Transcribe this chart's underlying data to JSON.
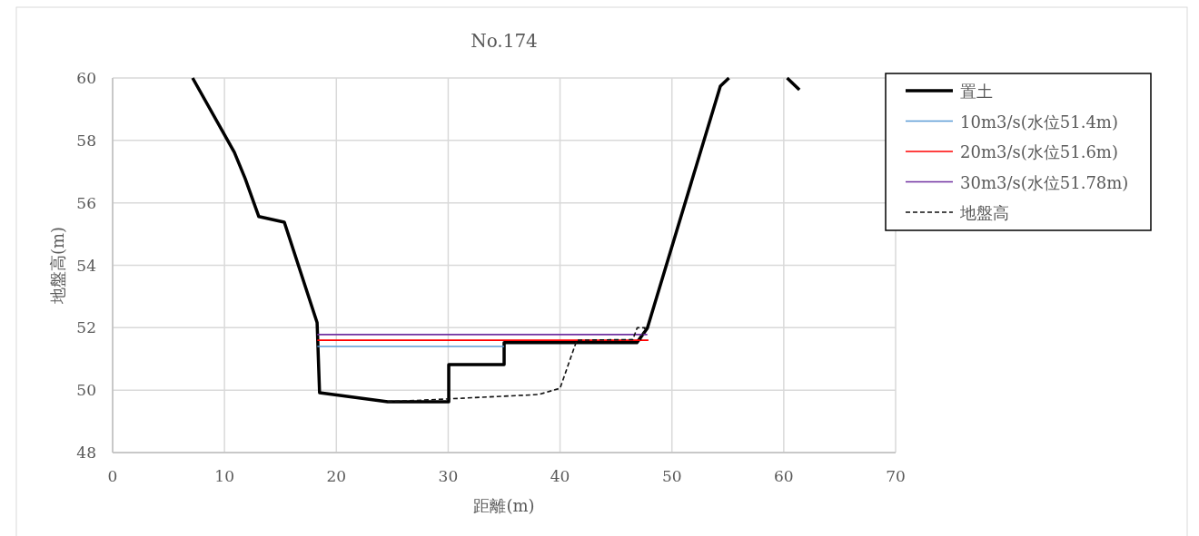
{
  "chart_data": {
    "type": "line",
    "title": "No.174",
    "xlabel": "距離(m)",
    "ylabel": "地盤高(m)",
    "xlim": [
      0,
      70
    ],
    "ylim": [
      48,
      60
    ],
    "xticks": [
      0,
      10,
      20,
      30,
      40,
      50,
      60,
      70
    ],
    "yticks": [
      48,
      50,
      52,
      54,
      56,
      58,
      60
    ],
    "grid": true,
    "legend": "top right",
    "series": [
      {
        "name": "置土",
        "color": "#000000",
        "line_style": "solid",
        "x": [
          7.15,
          10.88,
          11.85,
          13.07,
          15.35,
          18.28,
          18.5,
          24.6,
          30.05,
          30.05,
          35.0,
          35.0,
          46.86,
          47.8,
          54.33,
          55.1
        ],
        "values": [
          60,
          57.62,
          56.78,
          55.56,
          55.38,
          52.16,
          49.92,
          49.63,
          49.63,
          50.82,
          50.82,
          51.52,
          51.52,
          51.98,
          59.74,
          60
        ]
      },
      {
        "name": "10m3/s(水位51.4m)",
        "color": "#5b9bd5",
        "line_style": "solid",
        "x": [
          18.3,
          35.0
        ],
        "values": [
          51.4,
          51.4
        ]
      },
      {
        "name": "20m3/s(水位51.6m)",
        "color": "#ff0000",
        "line_style": "solid",
        "x": [
          18.3,
          47.9
        ],
        "values": [
          51.6,
          51.6
        ]
      },
      {
        "name": "30m3/s(水位51.78m)",
        "color": "#7030a0",
        "line_style": "solid",
        "x": [
          18.3,
          47.8
        ],
        "values": [
          51.78,
          51.78
        ]
      },
      {
        "color": "#000000",
        "line_style": "solid",
        "x": [
          60.3,
          61.4
        ],
        "values": [
          60,
          59.62
        ]
      },
      {
        "name": "地盤高",
        "color": "#111111",
        "line_style": "dashed",
        "x": [
          24.6,
          30.05,
          38.1,
          40.0,
          41.5,
          46.5,
          46.9,
          47.6,
          47.2
        ],
        "values": [
          49.63,
          49.72,
          49.86,
          50.06,
          51.6,
          51.62,
          52.0,
          52.0,
          51.6
        ]
      }
    ]
  }
}
